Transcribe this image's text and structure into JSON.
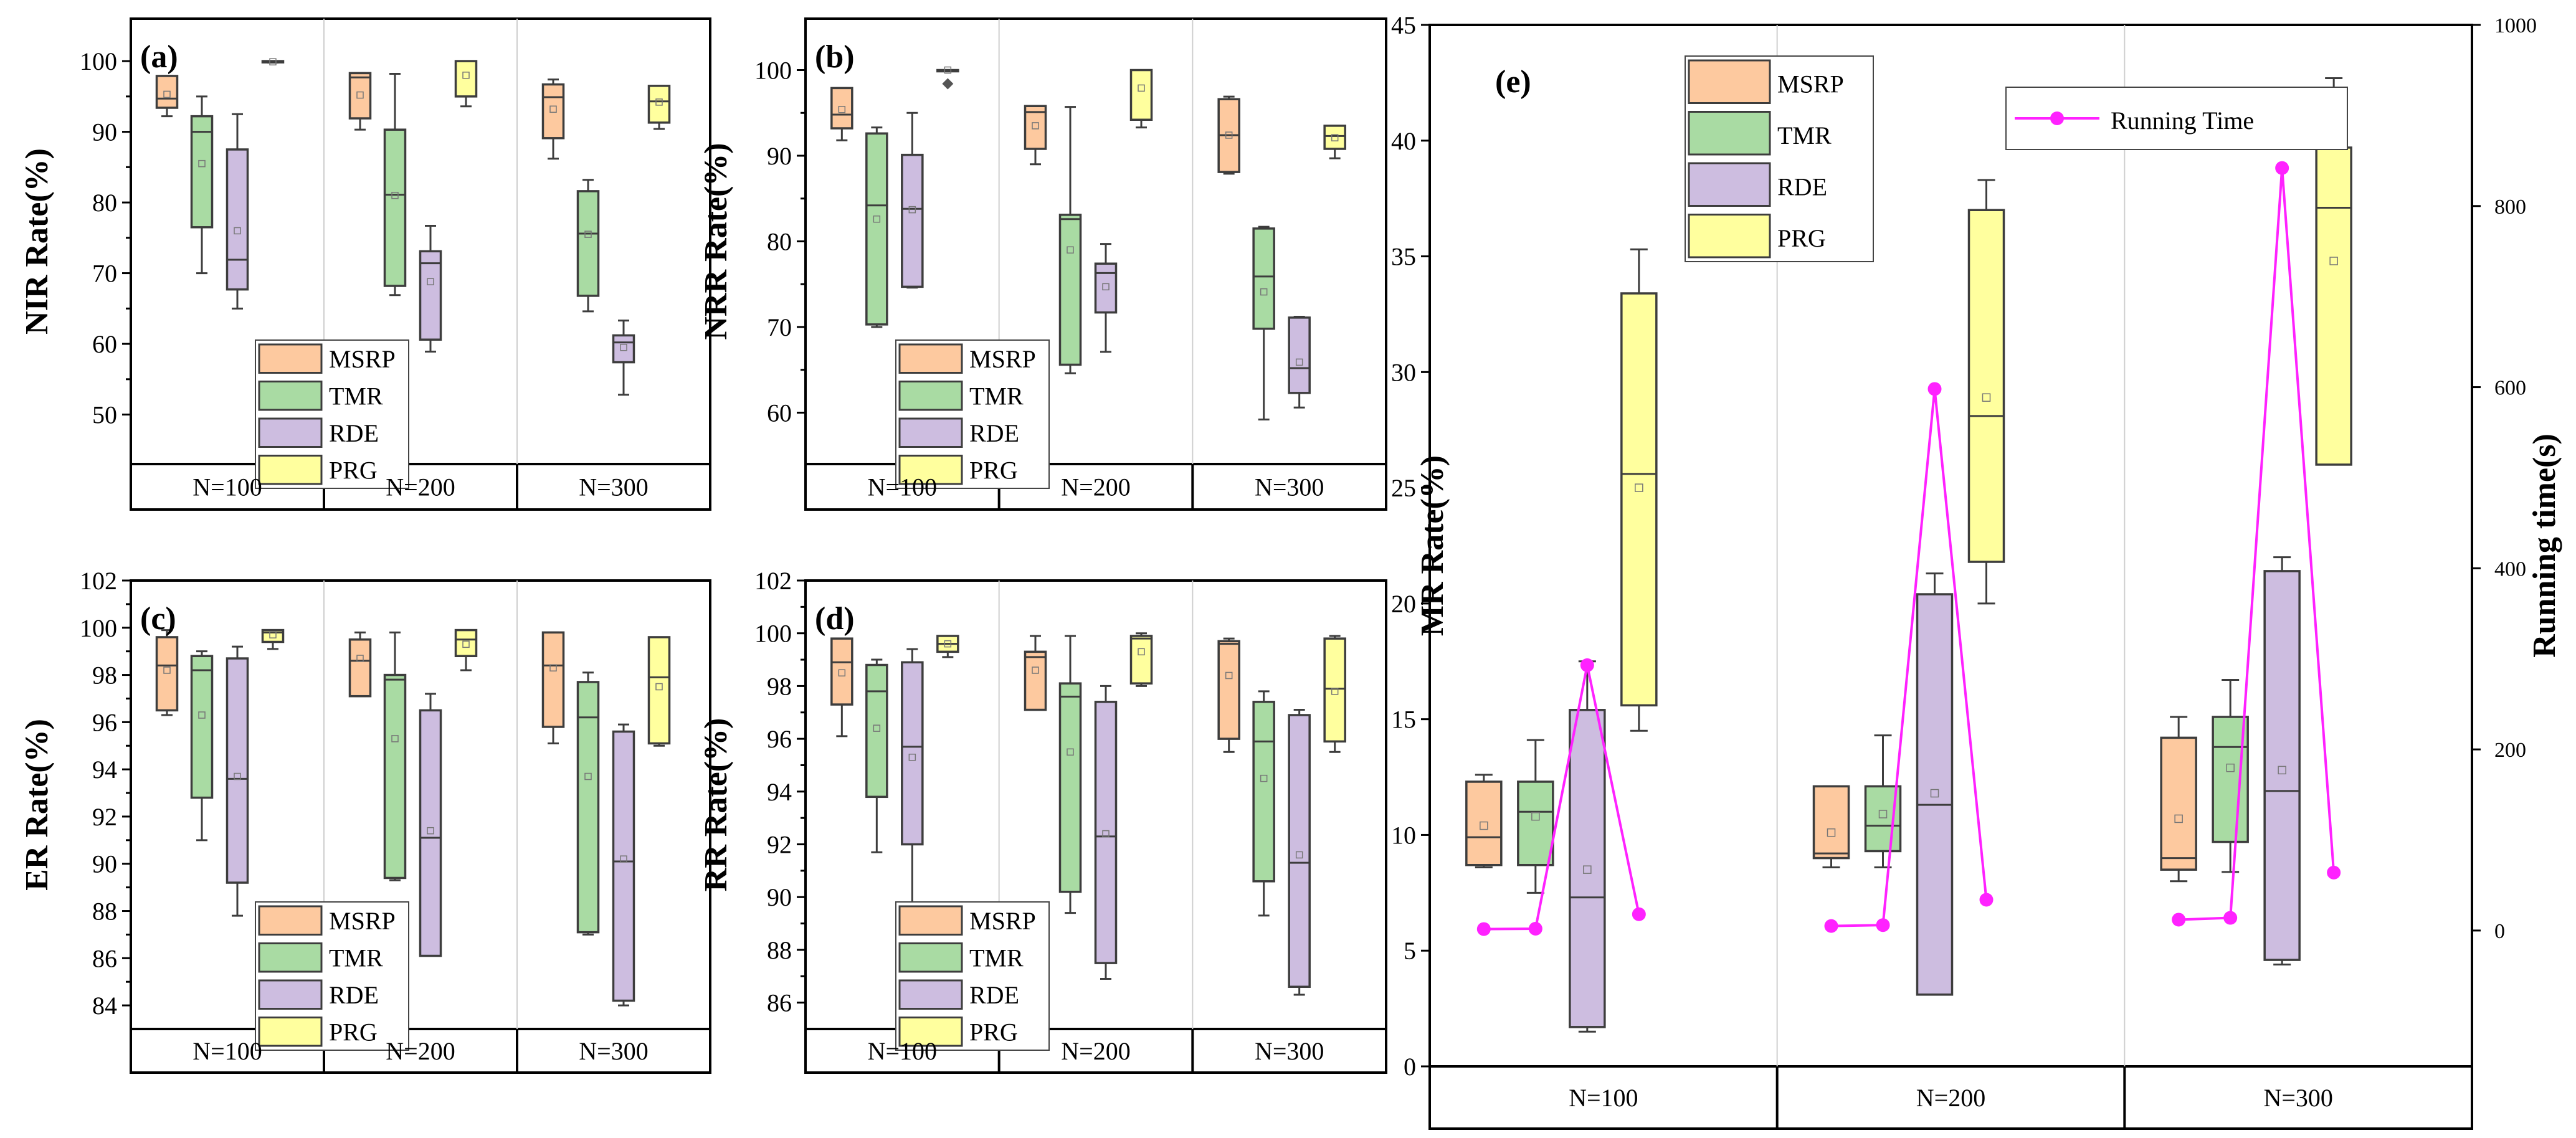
{
  "colors": {
    "MSRP": "#fdc99f",
    "TMR": "#a9dba3",
    "RDE": "#cdbde0",
    "PRG": "#ffff9e",
    "edge": "#3d3d3d",
    "running": "#ff22ff"
  },
  "chart_data": [
    {
      "id": "a",
      "type": "box",
      "letter": "(a)",
      "ylabel": "NIR Rate(%)",
      "ylim": [
        43,
        106
      ],
      "yticks": [
        50,
        60,
        70,
        80,
        90,
        100
      ],
      "groups": [
        "N=100",
        "N=200",
        "N=300"
      ],
      "legend": [
        "MSRP",
        "TMR",
        "RDE",
        "PRG"
      ],
      "series": [
        {
          "name": "MSRP",
          "boxes": [
            {
              "min": 92.2,
              "q1": 93.4,
              "med": 94.7,
              "q3": 97.9,
              "max": 97.9,
              "mean": 95.3
            },
            {
              "min": 90.3,
              "q1": 91.9,
              "med": 97.7,
              "q3": 98.3,
              "max": 98.3,
              "mean": 95.2
            },
            {
              "min": 86.2,
              "q1": 89.1,
              "med": 94.9,
              "q3": 96.7,
              "max": 97.4,
              "mean": 93.2
            }
          ]
        },
        {
          "name": "TMR",
          "boxes": [
            {
              "min": 70.0,
              "q1": 76.5,
              "med": 90.0,
              "q3": 92.2,
              "max": 95.0,
              "mean": 85.5
            },
            {
              "min": 66.9,
              "q1": 68.2,
              "med": 81.1,
              "q3": 90.3,
              "max": 98.2,
              "mean": 81.0
            },
            {
              "min": 64.6,
              "q1": 66.8,
              "med": 75.6,
              "q3": 81.6,
              "max": 83.2,
              "mean": 75.5
            }
          ]
        },
        {
          "name": "RDE",
          "boxes": [
            {
              "min": 65.0,
              "q1": 67.7,
              "med": 71.9,
              "q3": 87.5,
              "max": 92.5,
              "mean": 76.0
            },
            {
              "min": 58.9,
              "q1": 60.6,
              "med": 71.4,
              "q3": 73.1,
              "max": 76.7,
              "mean": 68.8
            },
            {
              "min": 52.8,
              "q1": 57.4,
              "med": 60.2,
              "q3": 61.2,
              "max": 63.3,
              "mean": 59.5
            }
          ]
        },
        {
          "name": "PRG",
          "boxes": [
            {
              "min": 99.8,
              "q1": 99.9,
              "med": 100.0,
              "q3": 100.0,
              "max": 100.0,
              "mean": 99.9
            },
            {
              "min": 93.6,
              "q1": 95.0,
              "med": 100.0,
              "q3": 100.0,
              "max": 100.0,
              "mean": 98.0
            },
            {
              "min": 90.4,
              "q1": 91.3,
              "med": 94.3,
              "q3": 96.5,
              "max": 96.5,
              "mean": 94.2
            }
          ]
        }
      ]
    },
    {
      "id": "b",
      "type": "box",
      "letter": "(b)",
      "ylabel": "NRR Rate(%)",
      "ylim": [
        54,
        106
      ],
      "yticks": [
        60,
        70,
        80,
        90,
        100
      ],
      "groups": [
        "N=100",
        "N=200",
        "N=300"
      ],
      "legend": [
        "MSRP",
        "TMR",
        "RDE",
        "PRG"
      ],
      "series": [
        {
          "name": "MSRP",
          "boxes": [
            {
              "min": 91.8,
              "q1": 93.2,
              "med": 94.8,
              "q3": 97.9,
              "max": 97.9,
              "mean": 95.4
            },
            {
              "min": 89.0,
              "q1": 90.8,
              "med": 95.1,
              "q3": 95.8,
              "max": 95.8,
              "mean": 93.5
            },
            {
              "min": 87.9,
              "q1": 88.1,
              "med": 92.4,
              "q3": 96.6,
              "max": 96.9,
              "mean": 92.4
            }
          ]
        },
        {
          "name": "TMR",
          "boxes": [
            {
              "min": 70.0,
              "q1": 70.3,
              "med": 84.2,
              "q3": 92.6,
              "max": 93.3,
              "mean": 82.6
            },
            {
              "min": 64.6,
              "q1": 65.6,
              "med": 82.6,
              "q3": 83.1,
              "max": 95.7,
              "mean": 79.0
            },
            {
              "min": 59.2,
              "q1": 69.8,
              "med": 75.9,
              "q3": 81.5,
              "max": 81.7,
              "mean": 74.1
            }
          ]
        },
        {
          "name": "RDE",
          "boxes": [
            {
              "min": 74.6,
              "q1": 74.7,
              "med": 83.8,
              "q3": 90.1,
              "max": 95.0,
              "mean": 83.7
            },
            {
              "min": 67.1,
              "q1": 71.7,
              "med": 76.3,
              "q3": 77.4,
              "max": 79.7,
              "mean": 74.7
            },
            {
              "min": 60.6,
              "q1": 62.3,
              "med": 65.2,
              "q3": 71.1,
              "max": 71.2,
              "mean": 65.9
            }
          ]
        },
        {
          "name": "PRG",
          "boxes": [
            {
              "min": 100.0,
              "q1": 100.0,
              "med": 100.0,
              "q3": 100.0,
              "max": 100.0,
              "mean": 100.0,
              "outlier": 98.4
            },
            {
              "min": 93.3,
              "q1": 94.2,
              "med": 100.0,
              "q3": 100.0,
              "max": 100.0,
              "mean": 97.9
            },
            {
              "min": 89.7,
              "q1": 90.8,
              "med": 92.3,
              "q3": 93.5,
              "max": 93.5,
              "mean": 92.1
            }
          ]
        }
      ]
    },
    {
      "id": "c",
      "type": "box",
      "letter": "(c)",
      "ylabel": "ER Rate(%)",
      "ylim": [
        83,
        102
      ],
      "yticks": [
        84,
        86,
        88,
        90,
        92,
        94,
        96,
        98,
        100,
        102
      ],
      "groups": [
        "N=100",
        "N=200",
        "N=300"
      ],
      "legend": [
        "MSRP",
        "TMR",
        "RDE",
        "PRG"
      ],
      "series": [
        {
          "name": "MSRP",
          "boxes": [
            {
              "min": 96.3,
              "q1": 96.5,
              "med": 98.4,
              "q3": 99.6,
              "max": 99.9,
              "mean": 98.2
            },
            {
              "min": 97.1,
              "q1": 97.1,
              "med": 98.6,
              "q3": 99.5,
              "max": 99.8,
              "mean": 98.7
            },
            {
              "min": 95.1,
              "q1": 95.8,
              "med": 98.4,
              "q3": 99.8,
              "max": 99.8,
              "mean": 98.3
            }
          ]
        },
        {
          "name": "TMR",
          "boxes": [
            {
              "min": 91.0,
              "q1": 92.8,
              "med": 98.2,
              "q3": 98.8,
              "max": 99.0,
              "mean": 96.3
            },
            {
              "min": 89.3,
              "q1": 89.4,
              "med": 97.8,
              "q3": 98.0,
              "max": 99.8,
              "mean": 95.3
            },
            {
              "min": 87.0,
              "q1": 87.1,
              "med": 96.2,
              "q3": 97.7,
              "max": 98.1,
              "mean": 93.7
            }
          ]
        },
        {
          "name": "RDE",
          "boxes": [
            {
              "min": 87.8,
              "q1": 89.2,
              "med": 93.6,
              "q3": 98.7,
              "max": 99.2,
              "mean": 93.7
            },
            {
              "min": 86.1,
              "q1": 86.1,
              "med": 91.1,
              "q3": 96.5,
              "max": 97.2,
              "mean": 91.4
            },
            {
              "min": 84.0,
              "q1": 84.2,
              "med": 90.1,
              "q3": 95.6,
              "max": 95.9,
              "mean": 90.2
            }
          ]
        },
        {
          "name": "PRG",
          "boxes": [
            {
              "min": 99.1,
              "q1": 99.4,
              "med": 99.8,
              "q3": 99.9,
              "max": 99.9,
              "mean": 99.7
            },
            {
              "min": 98.2,
              "q1": 98.8,
              "med": 99.5,
              "q3": 99.9,
              "max": 99.9,
              "mean": 99.3
            },
            {
              "min": 95.0,
              "q1": 95.1,
              "med": 97.9,
              "q3": 99.6,
              "max": 99.6,
              "mean": 97.5
            }
          ]
        }
      ]
    },
    {
      "id": "d",
      "type": "box",
      "letter": "(d)",
      "ylabel": "RR Rate(%)",
      "ylim": [
        85,
        102
      ],
      "yticks": [
        86,
        88,
        90,
        92,
        94,
        96,
        98,
        100,
        102
      ],
      "groups": [
        "N=100",
        "N=200",
        "N=300"
      ],
      "legend": [
        "MSRP",
        "TMR",
        "RDE",
        "PRG"
      ],
      "series": [
        {
          "name": "MSRP",
          "boxes": [
            {
              "min": 96.1,
              "q1": 97.3,
              "med": 98.9,
              "q3": 99.8,
              "max": 99.8,
              "mean": 98.5
            },
            {
              "min": 97.1,
              "q1": 97.1,
              "med": 99.1,
              "q3": 99.3,
              "max": 99.9,
              "mean": 98.6
            },
            {
              "min": 95.5,
              "q1": 96.0,
              "med": 99.6,
              "q3": 99.7,
              "max": 99.8,
              "mean": 98.4
            }
          ]
        },
        {
          "name": "TMR",
          "boxes": [
            {
              "min": 91.7,
              "q1": 93.8,
              "med": 97.8,
              "q3": 98.8,
              "max": 99.0,
              "mean": 96.4
            },
            {
              "min": 89.4,
              "q1": 90.2,
              "med": 97.6,
              "q3": 98.1,
              "max": 99.9,
              "mean": 95.5
            },
            {
              "min": 89.3,
              "q1": 90.6,
              "med": 95.9,
              "q3": 97.4,
              "max": 97.8,
              "mean": 94.5
            }
          ]
        },
        {
          "name": "RDE",
          "boxes": [
            {
              "min": 89.5,
              "q1": 92.0,
              "med": 95.7,
              "q3": 98.9,
              "max": 99.4,
              "mean": 95.3
            },
            {
              "min": 86.9,
              "q1": 87.5,
              "med": 92.3,
              "q3": 97.4,
              "max": 98.0,
              "mean": 92.4
            },
            {
              "min": 86.3,
              "q1": 86.6,
              "med": 91.3,
              "q3": 96.9,
              "max": 97.1,
              "mean": 91.6
            }
          ]
        },
        {
          "name": "PRG",
          "boxes": [
            {
              "min": 99.1,
              "q1": 99.3,
              "med": 99.6,
              "q3": 99.9,
              "max": 99.9,
              "mean": 99.6
            },
            {
              "min": 98.0,
              "q1": 98.1,
              "med": 99.8,
              "q3": 99.9,
              "max": 100.0,
              "mean": 99.3
            },
            {
              "min": 95.5,
              "q1": 95.9,
              "med": 97.9,
              "q3": 99.8,
              "max": 99.9,
              "mean": 97.8
            }
          ]
        }
      ]
    },
    {
      "id": "e",
      "type": "box",
      "letter": "(e)",
      "ylabel": "MR Rate(%)",
      "ylabel_right": "Running time(s)",
      "ylim": [
        0,
        45
      ],
      "yticks": [
        0,
        5,
        10,
        15,
        20,
        25,
        30,
        35,
        40,
        45
      ],
      "y2lim": [
        -150,
        1000
      ],
      "y2ticks": [
        0,
        200,
        400,
        600,
        800,
        1000
      ],
      "groups": [
        "N=100",
        "N=200",
        "N=300"
      ],
      "legend": [
        "MSRP",
        "TMR",
        "RDE",
        "PRG"
      ],
      "line_legend": "Running Time",
      "series": [
        {
          "name": "MSRP",
          "boxes": [
            {
              "min": 8.6,
              "q1": 8.7,
              "med": 9.9,
              "q3": 12.3,
              "max": 12.6,
              "mean": 10.4
            },
            {
              "min": 8.6,
              "q1": 9.0,
              "med": 9.2,
              "q3": 12.1,
              "max": 12.1,
              "mean": 10.1
            },
            {
              "min": 8.0,
              "q1": 8.5,
              "med": 9.0,
              "q3": 14.2,
              "max": 15.1,
              "mean": 10.7
            }
          ]
        },
        {
          "name": "TMR",
          "boxes": [
            {
              "min": 7.5,
              "q1": 8.7,
              "med": 11.0,
              "q3": 12.3,
              "max": 14.1,
              "mean": 10.8
            },
            {
              "min": 8.6,
              "q1": 9.3,
              "med": 10.4,
              "q3": 12.1,
              "max": 14.3,
              "mean": 10.9
            },
            {
              "min": 8.4,
              "q1": 9.7,
              "med": 13.8,
              "q3": 15.1,
              "max": 16.7,
              "mean": 12.9
            }
          ]
        },
        {
          "name": "RDE",
          "boxes": [
            {
              "min": 1.5,
              "q1": 1.7,
              "med": 7.3,
              "q3": 15.4,
              "max": 17.5,
              "mean": 8.5
            },
            {
              "min": 3.1,
              "q1": 3.1,
              "med": 11.3,
              "q3": 20.4,
              "max": 21.3,
              "mean": 11.8
            },
            {
              "min": 4.4,
              "q1": 4.6,
              "med": 11.9,
              "q3": 21.4,
              "max": 22.0,
              "mean": 12.8
            }
          ]
        },
        {
          "name": "PRG",
          "boxes": [
            {
              "min": 14.5,
              "q1": 15.6,
              "med": 25.6,
              "q3": 33.4,
              "max": 35.3,
              "mean": 25.0
            },
            {
              "min": 20.0,
              "q1": 21.8,
              "med": 28.1,
              "q3": 37.0,
              "max": 38.3,
              "mean": 28.9
            },
            {
              "min": 26.0,
              "q1": 26.0,
              "med": 37.1,
              "q3": 39.7,
              "max": 42.7,
              "mean": 34.8
            }
          ]
        }
      ],
      "running_time": [
        [
          1.6,
          2.0,
          293,
          18
        ],
        [
          5,
          6,
          598,
          34
        ],
        [
          12,
          14,
          842,
          64
        ]
      ]
    }
  ]
}
